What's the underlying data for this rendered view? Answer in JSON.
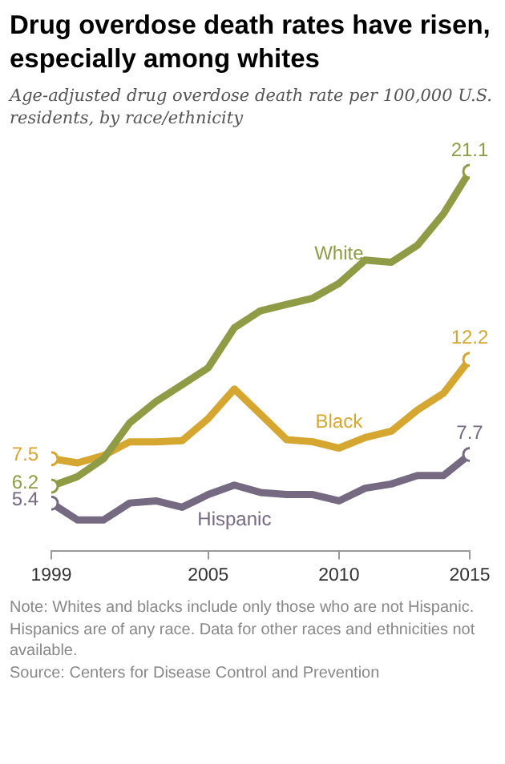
{
  "chart_data": {
    "type": "line",
    "title": "Drug overdose death rates have risen, especially among whites",
    "subtitle": "Age-adjusted drug overdose death rate per 100,000  U.S. residents, by race/ethnicity",
    "x": [
      1999,
      2000,
      2001,
      2002,
      2003,
      2004,
      2005,
      2006,
      2007,
      2008,
      2009,
      2010,
      2011,
      2012,
      2013,
      2014,
      2015
    ],
    "series": [
      {
        "name": "White",
        "color": "#8f9c45",
        "values": [
          6.2,
          6.65,
          7.5,
          9.2,
          10.2,
          11.0,
          11.8,
          13.7,
          14.5,
          14.8,
          15.1,
          15.8,
          16.9,
          16.8,
          17.6,
          19.1,
          21.1
        ],
        "value_labels": [
          "6.2",
          null,
          null,
          null,
          null,
          null,
          null,
          null,
          null,
          null,
          null,
          null,
          null,
          null,
          null,
          null,
          "21.1"
        ]
      },
      {
        "name": "Black",
        "color": "#d6a730",
        "values": [
          7.5,
          7.3,
          7.65,
          8.3,
          8.3,
          8.35,
          9.4,
          10.8,
          9.6,
          8.4,
          8.3,
          8.0,
          8.5,
          8.8,
          9.8,
          10.6,
          12.2
        ],
        "value_labels": [
          "7.5",
          null,
          null,
          null,
          null,
          null,
          null,
          null,
          null,
          null,
          null,
          null,
          null,
          null,
          null,
          null,
          "12.2"
        ]
      },
      {
        "name": "Hispanic",
        "color": "#756a81",
        "values": [
          5.4,
          4.6,
          4.6,
          5.4,
          5.5,
          5.2,
          5.8,
          6.25,
          5.9,
          5.8,
          5.8,
          5.5,
          6.1,
          6.3,
          6.7,
          6.7,
          7.7
        ],
        "value_labels": [
          "5.4",
          null,
          null,
          null,
          null,
          null,
          null,
          null,
          null,
          null,
          null,
          null,
          null,
          null,
          null,
          null,
          "7.7"
        ]
      }
    ],
    "xlim": [
      1999,
      2015
    ],
    "xticks": [
      1999,
      2005,
      2010,
      2015
    ],
    "grid": false,
    "legend": false,
    "line_style": "solid",
    "annotations": [
      "Note: Whites and blacks include only those who are not Hispanic. Hispanics are of any race. Data for other races and ethnicities not available.",
      "Source: Centers for Disease Control and Prevention"
    ]
  }
}
